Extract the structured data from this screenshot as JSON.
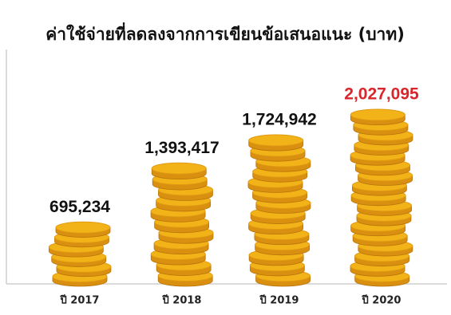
{
  "chart_data": {
    "type": "bar",
    "title": "ค่าใช้จ่ายที่ลดลงจากการเขียนข้อเสนอแนะ (บาท)",
    "categories": [
      "ปี 2017",
      "ปี 2018",
      "ปี 2019",
      "ปี 2020"
    ],
    "values": [
      695234,
      1393417,
      1724942,
      2027095
    ],
    "value_labels": [
      "695,234",
      "1,393,417",
      "1,724,942",
      "2,027,095"
    ],
    "value_label_colors": [
      "#111111",
      "#111111",
      "#111111",
      "#d8262c"
    ],
    "color": "#f2b318"
  }
}
